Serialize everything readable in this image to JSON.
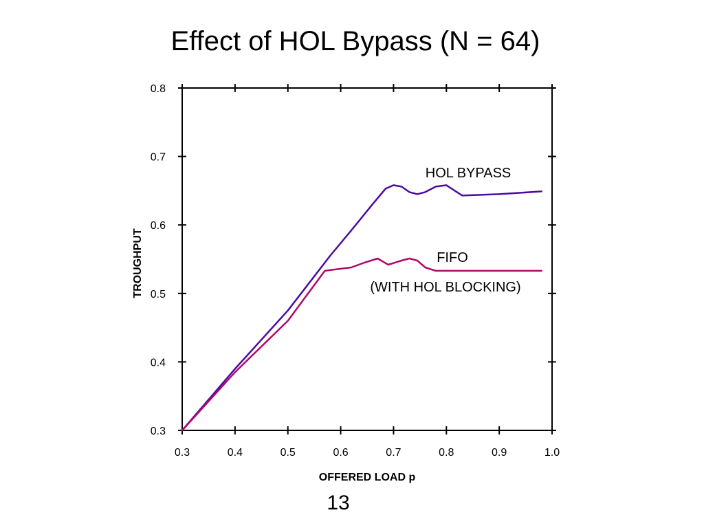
{
  "slide": {
    "title": "Effect of HOL Bypass (N = 64)",
    "page_number": "13"
  },
  "chart_data": {
    "type": "line",
    "title": "",
    "xlabel": "OFFERED LOAD p",
    "ylabel": "TROUGHPUT",
    "xlim": [
      0.3,
      1.0
    ],
    "ylim": [
      0.3,
      0.8
    ],
    "x_ticks": [
      "0.3",
      "0.4",
      "0.5",
      "0.6",
      "0.7",
      "0.8",
      "0.9",
      "1.0"
    ],
    "y_ticks": [
      "0.3",
      "0.4",
      "0.5",
      "0.6",
      "0.7",
      "0.8"
    ],
    "grid": false,
    "legend": "none",
    "series": [
      {
        "name": "HOL BYPASS",
        "color": "#4B0BA0",
        "points": [
          [
            0.3,
            0.3
          ],
          [
            0.4,
            0.39
          ],
          [
            0.5,
            0.475
          ],
          [
            0.58,
            0.555
          ],
          [
            0.62,
            0.592
          ],
          [
            0.66,
            0.63
          ],
          [
            0.685,
            0.653
          ],
          [
            0.7,
            0.658
          ],
          [
            0.715,
            0.656
          ],
          [
            0.73,
            0.648
          ],
          [
            0.745,
            0.645
          ],
          [
            0.76,
            0.648
          ],
          [
            0.78,
            0.656
          ],
          [
            0.8,
            0.658
          ],
          [
            0.83,
            0.643
          ],
          [
            0.9,
            0.645
          ],
          [
            0.98,
            0.649
          ]
        ]
      },
      {
        "name": "FIFO",
        "annotation": "(WITH HOL BLOCKING)",
        "color": "#B0086A",
        "points": [
          [
            0.3,
            0.3
          ],
          [
            0.4,
            0.385
          ],
          [
            0.5,
            0.46
          ],
          [
            0.57,
            0.533
          ],
          [
            0.59,
            0.535
          ],
          [
            0.62,
            0.538
          ],
          [
            0.645,
            0.545
          ],
          [
            0.67,
            0.551
          ],
          [
            0.69,
            0.542
          ],
          [
            0.715,
            0.548
          ],
          [
            0.73,
            0.551
          ],
          [
            0.745,
            0.548
          ],
          [
            0.76,
            0.538
          ],
          [
            0.78,
            0.533
          ],
          [
            0.98,
            0.533
          ]
        ]
      }
    ]
  }
}
